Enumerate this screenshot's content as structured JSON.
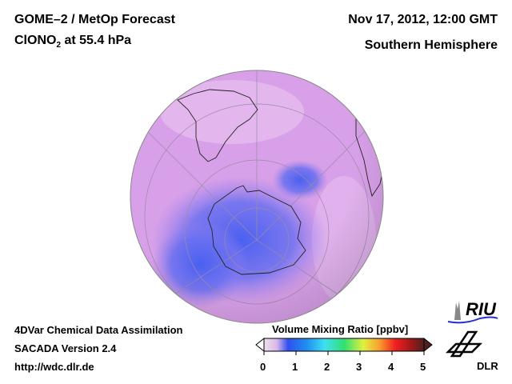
{
  "header": {
    "title_line1": "GOME–2 / MetOp Forecast",
    "species": "ClONO",
    "species_sub": "2",
    "level": " at 55.4 hPa",
    "date": "Nov 17, 2012, 12:00 GMT",
    "region": "Southern Hemisphere"
  },
  "footer": {
    "line1": "4DVar Chemical Data Assimilation",
    "line2": "SACADA Version 2.4",
    "line3": "http://wdc.dlr.de"
  },
  "colorbar": {
    "title": "Volume Mixing Ratio [ppbv]",
    "ticks": [
      "0",
      "1",
      "2",
      "3",
      "4",
      "5"
    ],
    "range": [
      0,
      5
    ],
    "colors": [
      "#f0e0ec",
      "#d8b8e8",
      "#3050f0",
      "#2090f0",
      "#40e0f0",
      "#30e070",
      "#e0f040",
      "#f8a030",
      "#f02020",
      "#a01818",
      "#502020"
    ]
  },
  "logos": {
    "riu": "RIU",
    "dlr": "DLR"
  }
}
